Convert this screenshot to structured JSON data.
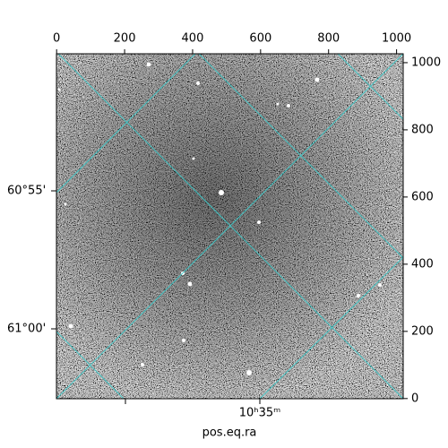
{
  "chart_data": {
    "type": "image",
    "xlabel": "pos.eq.ra",
    "xlim": [
      -0.5,
      1019.5
    ],
    "xticks": [
      0,
      200,
      400,
      600,
      800,
      1000
    ],
    "ylim": [
      -0.5,
      1026.5
    ],
    "yticks": [
      0,
      200,
      400,
      600,
      800,
      1000
    ],
    "left_tick_labels": [
      "60°55'",
      "61°00'"
    ],
    "bottom_tick_labels": [
      "10ʰ35ᵐ"
    ]
  }
}
